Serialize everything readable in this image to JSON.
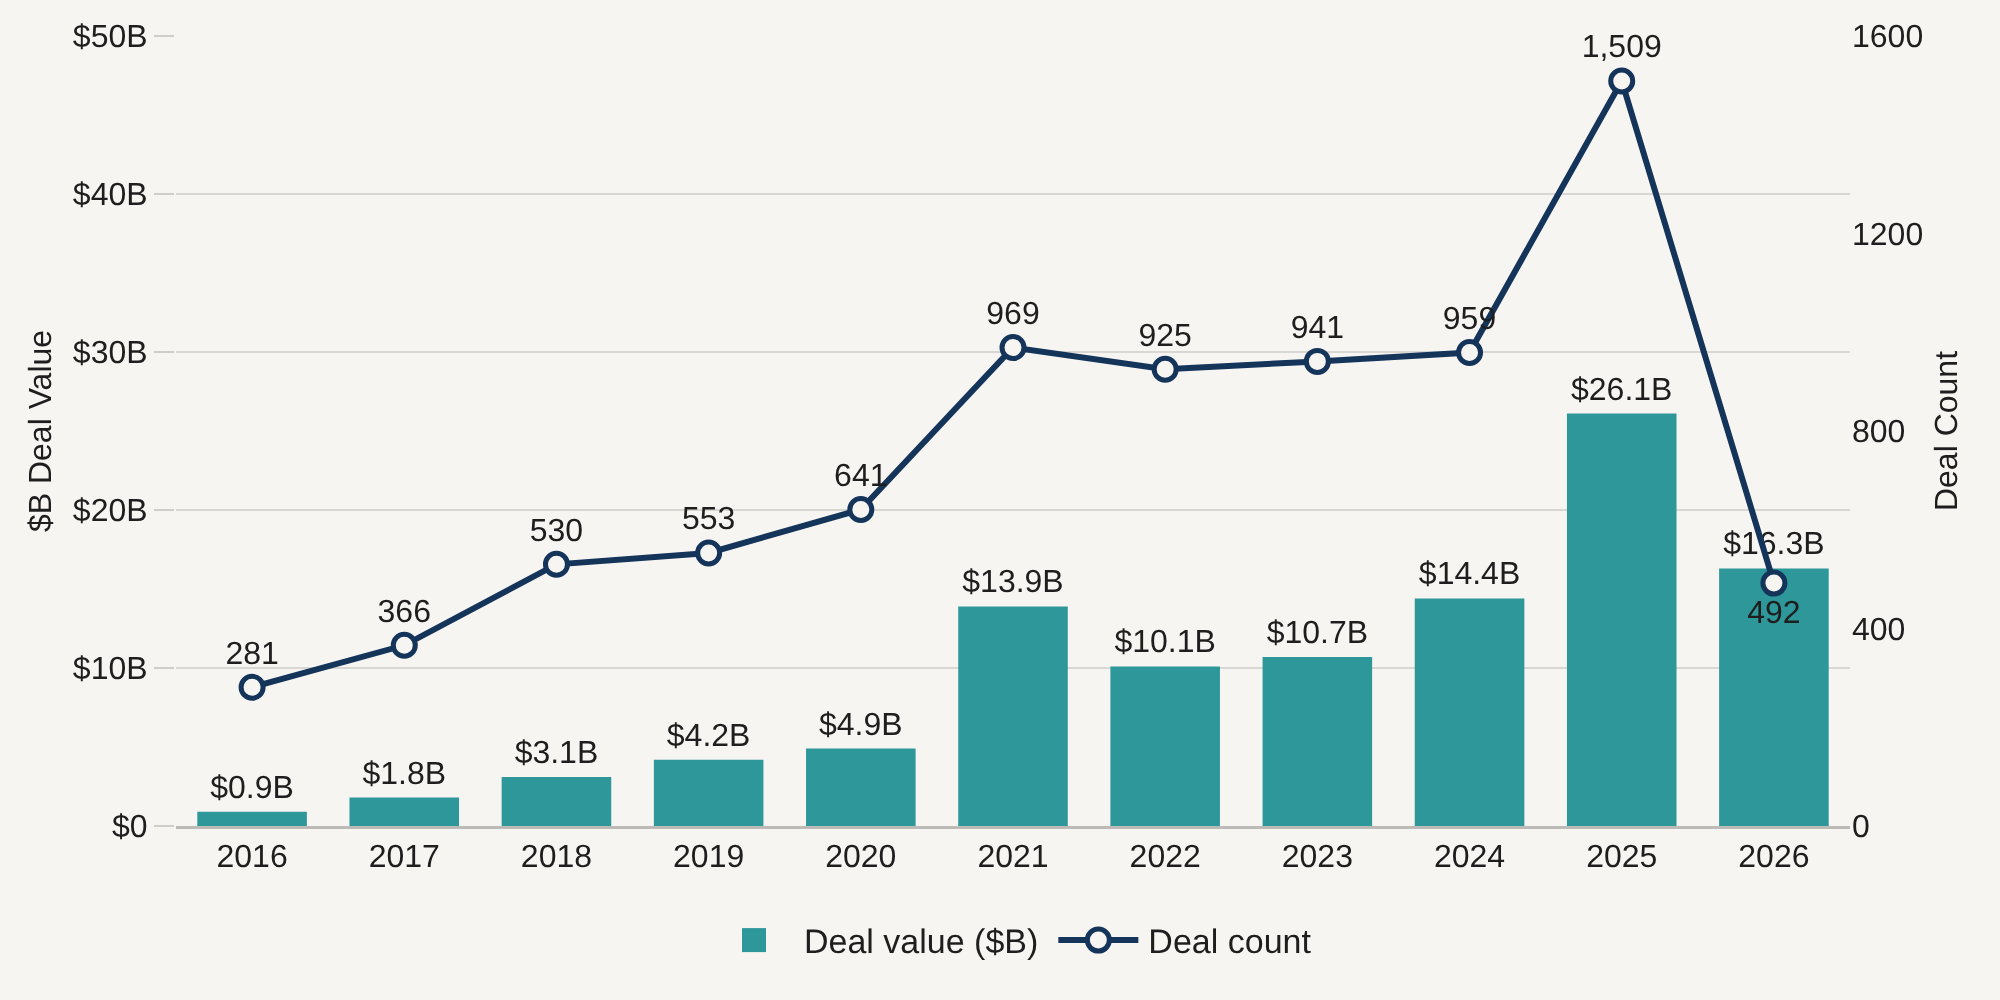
{
  "chart_data": {
    "type": "bar",
    "categories": [
      "2016",
      "2017",
      "2018",
      "2019",
      "2020",
      "2021",
      "2022",
      "2023",
      "2024",
      "2025",
      "2026"
    ],
    "series": [
      {
        "name": "Deal value ($B)",
        "color": "#2e9799",
        "values": [
          0.9,
          1.8,
          3.1,
          4.2,
          4.9,
          13.9,
          10.1,
          10.7,
          14.4,
          26.1,
          16.3
        ],
        "value_labels": [
          "$0.9B",
          "$1.8B",
          "$3.1B",
          "$4.2B",
          "$4.9B",
          "$13.9B",
          "$10.1B",
          "$10.7B",
          "$14.4B",
          "$26.1B",
          "$16.3B"
        ]
      },
      {
        "name": "Deal count",
        "type": "line",
        "axis": "y2",
        "color": "#14345a",
        "marker": "circle",
        "values": [
          281,
          366,
          530,
          553,
          641,
          969,
          925,
          941,
          959,
          1509,
          492
        ],
        "value_labels": [
          "281",
          "366",
          "530",
          "553",
          "641",
          "969",
          "925",
          "941",
          "959",
          "1,509",
          "492"
        ]
      }
    ],
    "ylabel": "$B Deal Value",
    "y2label": "Deal Count",
    "ylim": [
      0,
      50
    ],
    "yticks": [
      {
        "value": 0,
        "label": "$0"
      },
      {
        "value": 10,
        "label": "$10B"
      },
      {
        "value": 20,
        "label": "$20B"
      },
      {
        "value": 30,
        "label": "$30B"
      },
      {
        "value": 40,
        "label": "$40B"
      },
      {
        "value": 50,
        "label": "$50B"
      }
    ],
    "y2lim": [
      0,
      1600
    ],
    "y2ticks": [
      0,
      400,
      800,
      1200,
      1600
    ],
    "grid": "y",
    "legend": "bottom"
  }
}
